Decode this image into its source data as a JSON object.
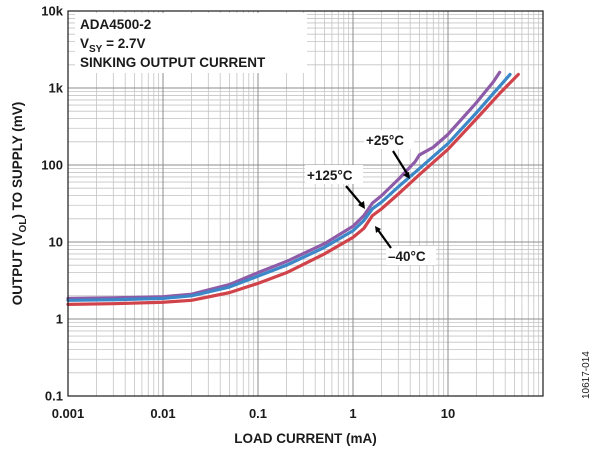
{
  "chart_data": {
    "type": "line",
    "title": "",
    "xlabel": "LOAD CURRENT (mA)",
    "ylabel": "OUTPUT (V_OL) TO SUPPLY (mV)",
    "ylabel_parts": {
      "pre": "OUTPUT (V",
      "sub": "OL",
      "post": ") TO SUPPLY (mV)"
    },
    "x_scale": "log",
    "y_scale": "log",
    "xlim": [
      0.001,
      100
    ],
    "ylim": [
      0.1,
      10000
    ],
    "grid": true,
    "x_ticks": [
      {
        "value": 0.001,
        "label": "0.001"
      },
      {
        "value": 0.01,
        "label": "0.01"
      },
      {
        "value": 0.1,
        "label": "0.1"
      },
      {
        "value": 1,
        "label": "1"
      },
      {
        "value": 10,
        "label": "10"
      }
    ],
    "y_ticks": [
      {
        "value": 0.1,
        "label": "0.1"
      },
      {
        "value": 1,
        "label": "1"
      },
      {
        "value": 10,
        "label": "10"
      },
      {
        "value": 100,
        "label": "100"
      },
      {
        "value": 1000,
        "label": "1k"
      },
      {
        "value": 10000,
        "label": "10k"
      }
    ],
    "info_box": {
      "line1": "ADA4500-2",
      "line2_pre": "V",
      "line2_sub": "SY",
      "line2_post": " = 2.7V",
      "line3": "SINKING OUTPUT CURRENT"
    },
    "series": [
      {
        "name": "+125°C",
        "color": "#8e5ba8",
        "points": [
          [
            0.001,
            1.85
          ],
          [
            0.003,
            1.88
          ],
          [
            0.01,
            1.95
          ],
          [
            0.02,
            2.1
          ],
          [
            0.05,
            2.8
          ],
          [
            0.1,
            4.0
          ],
          [
            0.2,
            5.6
          ],
          [
            0.5,
            9.5
          ],
          [
            1.0,
            16.0
          ],
          [
            1.3,
            22.0
          ],
          [
            1.6,
            32.0
          ],
          [
            2.0,
            40.0
          ],
          [
            3.0,
            65.0
          ],
          [
            4.5,
            110.0
          ],
          [
            5.0,
            135.0
          ],
          [
            7.0,
            170.0
          ],
          [
            10.0,
            250.0
          ],
          [
            20.0,
            650.0
          ],
          [
            30.0,
            1200.0
          ],
          [
            35.0,
            1600.0
          ]
        ]
      },
      {
        "name": "+25°C",
        "color": "#3b87c8",
        "points": [
          [
            0.001,
            1.75
          ],
          [
            0.003,
            1.78
          ],
          [
            0.01,
            1.85
          ],
          [
            0.02,
            2.0
          ],
          [
            0.05,
            2.6
          ],
          [
            0.1,
            3.6
          ],
          [
            0.2,
            5.0
          ],
          [
            0.5,
            8.5
          ],
          [
            1.0,
            14.0
          ],
          [
            1.3,
            19.0
          ],
          [
            1.6,
            27.0
          ],
          [
            2.0,
            33.0
          ],
          [
            3.0,
            52.0
          ],
          [
            5.0,
            90.0
          ],
          [
            10.0,
            190.0
          ],
          [
            20.0,
            480.0
          ],
          [
            30.0,
            850.0
          ],
          [
            45.0,
            1500.0
          ]
        ]
      },
      {
        "name": "–40°C",
        "color": "#d1434a",
        "points": [
          [
            0.001,
            1.55
          ],
          [
            0.003,
            1.58
          ],
          [
            0.01,
            1.65
          ],
          [
            0.02,
            1.75
          ],
          [
            0.05,
            2.2
          ],
          [
            0.1,
            2.9
          ],
          [
            0.2,
            4.0
          ],
          [
            0.5,
            7.0
          ],
          [
            1.0,
            11.5
          ],
          [
            1.3,
            15.0
          ],
          [
            1.6,
            22.0
          ],
          [
            2.0,
            27.0
          ],
          [
            3.0,
            42.0
          ],
          [
            5.0,
            75.0
          ],
          [
            10.0,
            160.0
          ],
          [
            20.0,
            400.0
          ],
          [
            35.0,
            850.0
          ],
          [
            55.0,
            1500.0
          ]
        ]
      }
    ],
    "annotations": [
      {
        "text": "+25°C",
        "series": "+25°C"
      },
      {
        "text": "+125°C",
        "series": "+125°C"
      },
      {
        "text": "–40°C",
        "series": "–40°C"
      }
    ],
    "figure_id": "10617-014"
  }
}
